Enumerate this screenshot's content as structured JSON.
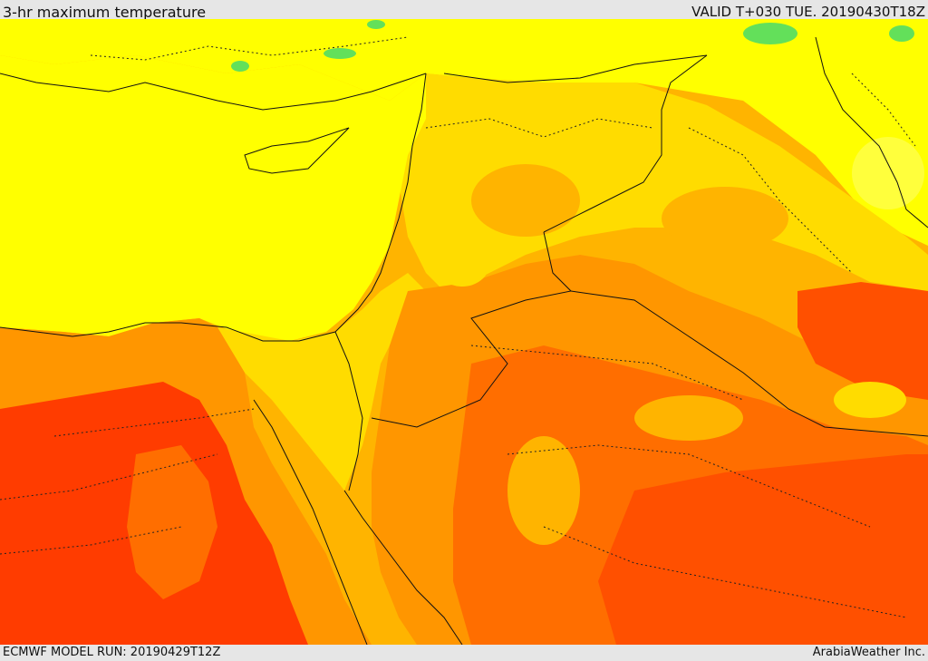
{
  "header": {
    "title": "3-hr maximum temperature",
    "valid_time": "VALID T+030 TUE. 20190430T18Z"
  },
  "footer": {
    "model_run": "ECMWF MODEL RUN: 20190429T12Z",
    "credit": "ArabiaWeather Inc."
  },
  "map": {
    "field": "3-hr maximum temperature",
    "palette": {
      "green": "#63e05a",
      "light_yellow": "#ffff3c",
      "yellow": "#ffff00",
      "gold": "#ffdc00",
      "amber": "#ffb400",
      "orange": "#ff9600",
      "dark_orange": "#ff6e00",
      "red_orange": "#ff5000",
      "red": "#ff3c00"
    }
  }
}
